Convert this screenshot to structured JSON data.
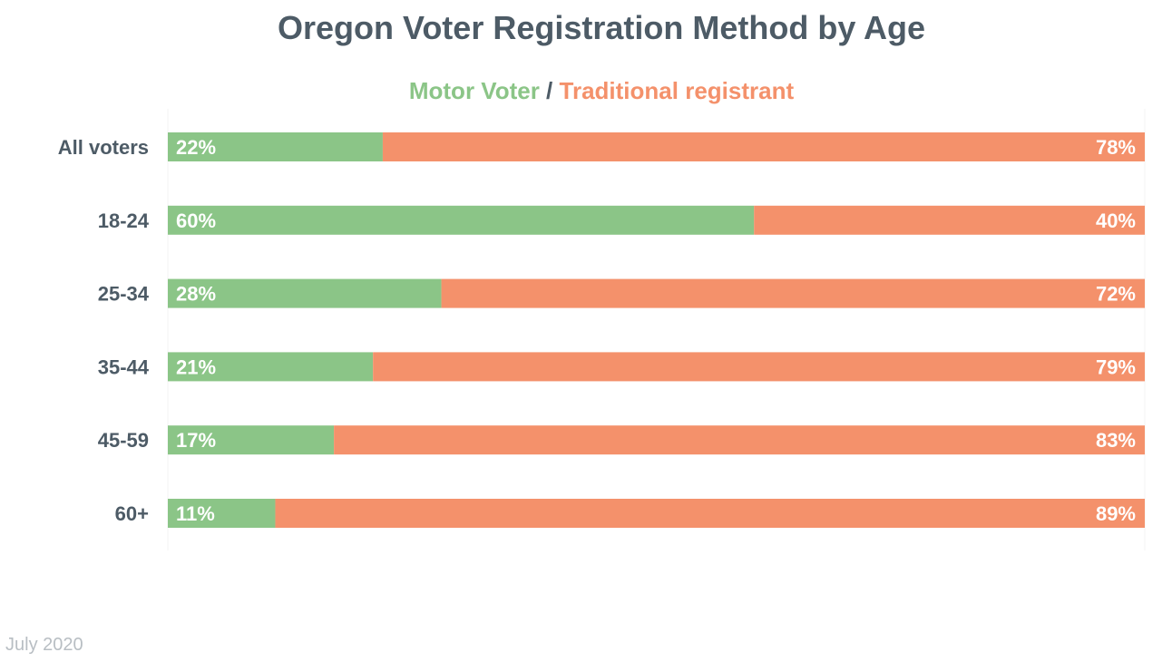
{
  "chart_data": {
    "type": "bar",
    "orientation": "horizontal",
    "stacked": true,
    "title": "Oregon Voter Registration Method by Age",
    "categories": [
      "All voters",
      "18-24",
      "25-34",
      "35-44",
      "45-59",
      "60+"
    ],
    "series": [
      {
        "name": "Motor Voter",
        "color": "#8bc587",
        "values": [
          22,
          60,
          28,
          21,
          17,
          11
        ],
        "labels": [
          "22%",
          "60%",
          "28%",
          "21%",
          "17%",
          "11%"
        ]
      },
      {
        "name": "Traditional registrant",
        "color": "#f4916b",
        "values": [
          78,
          40,
          72,
          79,
          83,
          89
        ],
        "labels": [
          "78%",
          "40%",
          "72%",
          "79%",
          "83%",
          "89%"
        ]
      }
    ],
    "xlim": [
      0,
      100
    ],
    "grid": false,
    "legend_separator": "/",
    "legend_position": "top-center"
  },
  "footnote": "July 2020",
  "colors": {
    "title": "#4d5b66",
    "category_label": "#4d5b66",
    "bar_label": "#ffffff",
    "footnote": "#b8bec3"
  }
}
